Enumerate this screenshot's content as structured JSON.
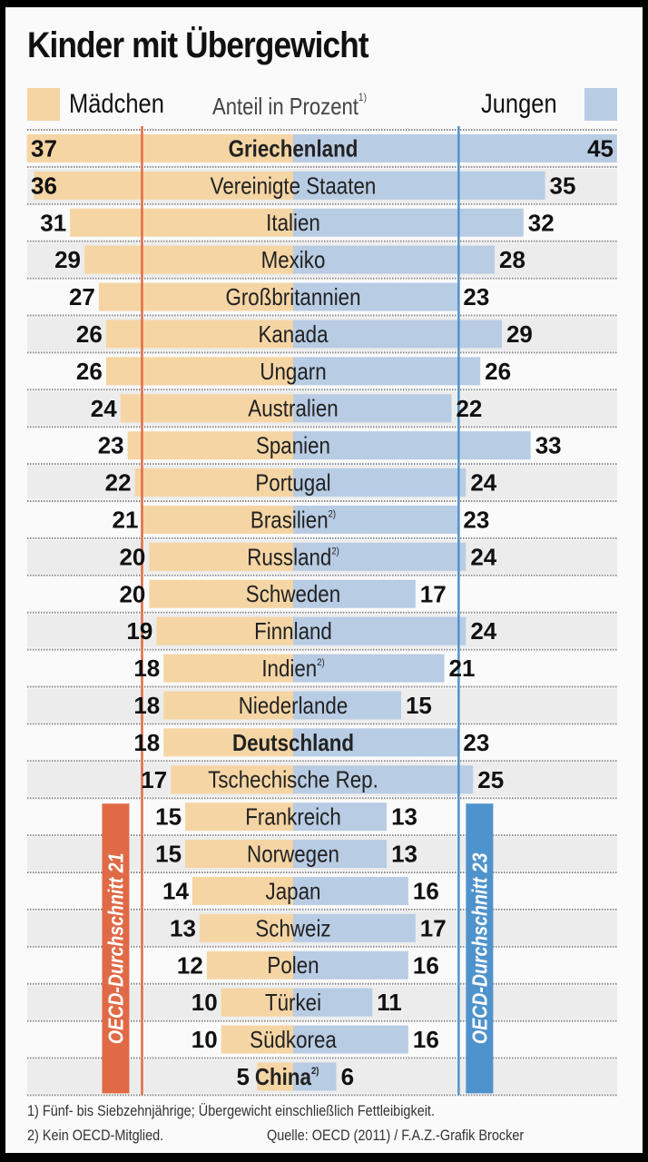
{
  "chart_data": {
    "type": "bar",
    "subtype": "diverging-horizontal-bar",
    "title": "Kinder mit Übergewicht",
    "unit_label": "Anteil in Prozent",
    "unit_label_footnote": "1)",
    "legend": [
      {
        "name": "Mädchen",
        "color": "#f5d5a4",
        "side": "left"
      },
      {
        "name": "Jungen",
        "color": "#b8cce4",
        "side": "right"
      }
    ],
    "categories": [
      "Griechenland",
      "Vereinigte Staaten",
      "Italien",
      "Mexiko",
      "Großbritannien",
      "Kanada",
      "Ungarn",
      "Australien",
      "Spanien",
      "Portugal",
      "Brasilien",
      "Russland",
      "Schweden",
      "Finnland",
      "Indien",
      "Niederlande",
      "Deutschland",
      "Tschechische Rep.",
      "Frankreich",
      "Norwegen",
      "Japan",
      "Schweiz",
      "Polen",
      "Türkei",
      "Südkorea",
      "China"
    ],
    "category_footnotes": {
      "Brasilien": "2)",
      "Russland": "2)",
      "Indien": "2)",
      "China": "2)"
    },
    "bold_categories": [
      "Griechenland",
      "Deutschland"
    ],
    "series": [
      {
        "name": "Mädchen",
        "values": [
          37,
          36,
          31,
          29,
          27,
          26,
          26,
          24,
          23,
          22,
          21,
          20,
          20,
          19,
          18,
          18,
          18,
          17,
          15,
          15,
          14,
          13,
          12,
          10,
          10,
          5
        ]
      },
      {
        "name": "Jungen",
        "values": [
          45,
          35,
          32,
          28,
          23,
          29,
          26,
          22,
          33,
          24,
          23,
          24,
          17,
          24,
          21,
          15,
          23,
          25,
          13,
          13,
          16,
          17,
          16,
          11,
          16,
          6
        ]
      }
    ],
    "reference_lines": [
      {
        "name": "OECD-Durchschnitt",
        "series": "Mädchen",
        "value": 21,
        "label": "OECD-Durchschnitt 21",
        "color": "#e06a45"
      },
      {
        "name": "OECD-Durchschnitt",
        "series": "Jungen",
        "value": 23,
        "label": "OECD-Durchschnitt 23",
        "color": "#4f93cc"
      }
    ],
    "xlim": [
      0,
      45
    ],
    "grid": "dotted row separators"
  },
  "footnotes": [
    "1) Fünf- bis Siebzehnjährige; Übergewicht einschließlich Fettleibigkeit.",
    "2) Kein OECD-Mitglied."
  ],
  "source": "Quelle: OECD (2011) / F.A.Z.-Grafik Brocker"
}
